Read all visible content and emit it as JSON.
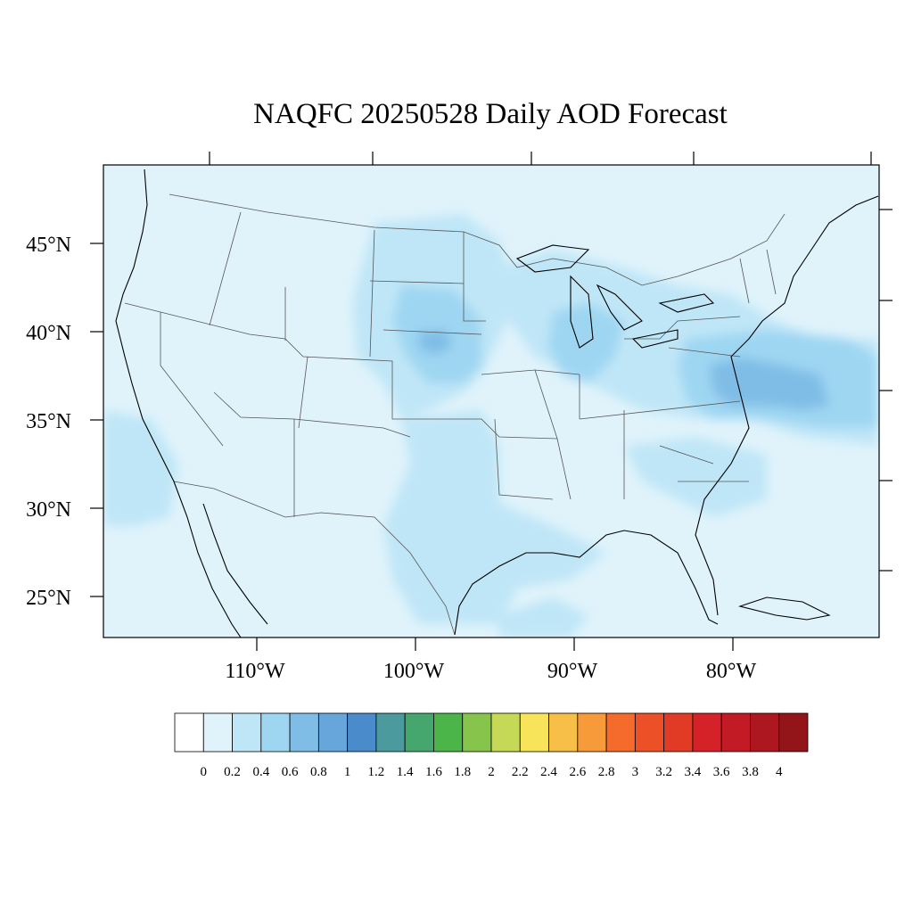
{
  "title": "NAQFC 20250528 Daily AOD Forecast",
  "map": {
    "projection": "lambert-conformal",
    "lon_range": [
      -120,
      -70
    ],
    "lat_range": [
      22,
      50
    ],
    "base_color": "#e0f3fb",
    "coastline_color": "#000000",
    "border_color": "#555555"
  },
  "lat_ticks": [
    {
      "label": "45°N",
      "lat": 45
    },
    {
      "label": "40°N",
      "lat": 40
    },
    {
      "label": "35°N",
      "lat": 35
    },
    {
      "label": "30°N",
      "lat": 30
    },
    {
      "label": "25°N",
      "lat": 25
    }
  ],
  "lon_ticks": [
    {
      "label": "110°W",
      "lon": -110
    },
    {
      "label": "100°W",
      "lon": -100
    },
    {
      "label": "90°W",
      "lon": -90
    },
    {
      "label": "80°W",
      "lon": -80
    }
  ],
  "aod_regions": [
    {
      "name": "northern-plains-plume",
      "aod": 0.5
    },
    {
      "name": "nebraska-core",
      "aod": 0.7
    },
    {
      "name": "great-lakes-plume",
      "aod": 0.5
    },
    {
      "name": "mid-atlantic-plume",
      "aod": 0.7
    },
    {
      "name": "atlantic-offshore-core",
      "aod": 0.75
    },
    {
      "name": "gulf-coast-band",
      "aod": 0.3
    },
    {
      "name": "pacific-offshore",
      "aod": 0.3
    }
  ],
  "colorbar": {
    "labels": [
      "0",
      "0.2",
      "0.4",
      "0.6",
      "0.8",
      "1",
      "1.2",
      "1.4",
      "1.6",
      "1.8",
      "2",
      "2.2",
      "2.4",
      "2.6",
      "2.8",
      "3",
      "3.2",
      "3.4",
      "3.6",
      "3.8",
      "4"
    ],
    "colors": [
      "#ffffff",
      "#e0f3fb",
      "#bfe6f7",
      "#9ed6f2",
      "#80bde6",
      "#66a6da",
      "#4a8bcc",
      "#4a9a9e",
      "#45a66e",
      "#4bb54a",
      "#86c44c",
      "#c6d957",
      "#f7e45a",
      "#f8bf48",
      "#f79a3a",
      "#f46b2b",
      "#ec5027",
      "#e13a25",
      "#d52128",
      "#c21b25",
      "#ac1720",
      "#931419"
    ]
  }
}
